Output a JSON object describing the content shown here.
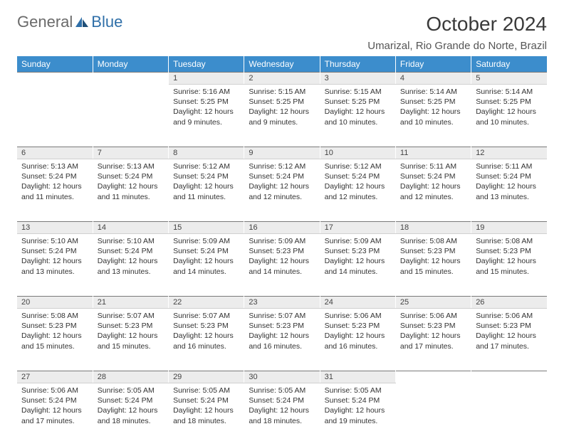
{
  "logo": {
    "general": "General",
    "blue": "Blue"
  },
  "title": "October 2024",
  "location": "Umarizal, Rio Grande do Norte, Brazil",
  "colors": {
    "header_bg": "#3c8dcc",
    "header_text": "#ffffff",
    "daynum_bg": "#ececec",
    "logo_gray": "#6a6a6a",
    "logo_blue": "#2f6fa8"
  },
  "weekdays": [
    "Sunday",
    "Monday",
    "Tuesday",
    "Wednesday",
    "Thursday",
    "Friday",
    "Saturday"
  ],
  "weeks": [
    [
      null,
      null,
      {
        "n": "1",
        "sunrise": "5:16 AM",
        "sunset": "5:25 PM",
        "daylight": "12 hours and 9 minutes."
      },
      {
        "n": "2",
        "sunrise": "5:15 AM",
        "sunset": "5:25 PM",
        "daylight": "12 hours and 9 minutes."
      },
      {
        "n": "3",
        "sunrise": "5:15 AM",
        "sunset": "5:25 PM",
        "daylight": "12 hours and 10 minutes."
      },
      {
        "n": "4",
        "sunrise": "5:14 AM",
        "sunset": "5:25 PM",
        "daylight": "12 hours and 10 minutes."
      },
      {
        "n": "5",
        "sunrise": "5:14 AM",
        "sunset": "5:25 PM",
        "daylight": "12 hours and 10 minutes."
      }
    ],
    [
      {
        "n": "6",
        "sunrise": "5:13 AM",
        "sunset": "5:24 PM",
        "daylight": "12 hours and 11 minutes."
      },
      {
        "n": "7",
        "sunrise": "5:13 AM",
        "sunset": "5:24 PM",
        "daylight": "12 hours and 11 minutes."
      },
      {
        "n": "8",
        "sunrise": "5:12 AM",
        "sunset": "5:24 PM",
        "daylight": "12 hours and 11 minutes."
      },
      {
        "n": "9",
        "sunrise": "5:12 AM",
        "sunset": "5:24 PM",
        "daylight": "12 hours and 12 minutes."
      },
      {
        "n": "10",
        "sunrise": "5:12 AM",
        "sunset": "5:24 PM",
        "daylight": "12 hours and 12 minutes."
      },
      {
        "n": "11",
        "sunrise": "5:11 AM",
        "sunset": "5:24 PM",
        "daylight": "12 hours and 12 minutes."
      },
      {
        "n": "12",
        "sunrise": "5:11 AM",
        "sunset": "5:24 PM",
        "daylight": "12 hours and 13 minutes."
      }
    ],
    [
      {
        "n": "13",
        "sunrise": "5:10 AM",
        "sunset": "5:24 PM",
        "daylight": "12 hours and 13 minutes."
      },
      {
        "n": "14",
        "sunrise": "5:10 AM",
        "sunset": "5:24 PM",
        "daylight": "12 hours and 13 minutes."
      },
      {
        "n": "15",
        "sunrise": "5:09 AM",
        "sunset": "5:24 PM",
        "daylight": "12 hours and 14 minutes."
      },
      {
        "n": "16",
        "sunrise": "5:09 AM",
        "sunset": "5:23 PM",
        "daylight": "12 hours and 14 minutes."
      },
      {
        "n": "17",
        "sunrise": "5:09 AM",
        "sunset": "5:23 PM",
        "daylight": "12 hours and 14 minutes."
      },
      {
        "n": "18",
        "sunrise": "5:08 AM",
        "sunset": "5:23 PM",
        "daylight": "12 hours and 15 minutes."
      },
      {
        "n": "19",
        "sunrise": "5:08 AM",
        "sunset": "5:23 PM",
        "daylight": "12 hours and 15 minutes."
      }
    ],
    [
      {
        "n": "20",
        "sunrise": "5:08 AM",
        "sunset": "5:23 PM",
        "daylight": "12 hours and 15 minutes."
      },
      {
        "n": "21",
        "sunrise": "5:07 AM",
        "sunset": "5:23 PM",
        "daylight": "12 hours and 15 minutes."
      },
      {
        "n": "22",
        "sunrise": "5:07 AM",
        "sunset": "5:23 PM",
        "daylight": "12 hours and 16 minutes."
      },
      {
        "n": "23",
        "sunrise": "5:07 AM",
        "sunset": "5:23 PM",
        "daylight": "12 hours and 16 minutes."
      },
      {
        "n": "24",
        "sunrise": "5:06 AM",
        "sunset": "5:23 PM",
        "daylight": "12 hours and 16 minutes."
      },
      {
        "n": "25",
        "sunrise": "5:06 AM",
        "sunset": "5:23 PM",
        "daylight": "12 hours and 17 minutes."
      },
      {
        "n": "26",
        "sunrise": "5:06 AM",
        "sunset": "5:23 PM",
        "daylight": "12 hours and 17 minutes."
      }
    ],
    [
      {
        "n": "27",
        "sunrise": "5:06 AM",
        "sunset": "5:24 PM",
        "daylight": "12 hours and 17 minutes."
      },
      {
        "n": "28",
        "sunrise": "5:05 AM",
        "sunset": "5:24 PM",
        "daylight": "12 hours and 18 minutes."
      },
      {
        "n": "29",
        "sunrise": "5:05 AM",
        "sunset": "5:24 PM",
        "daylight": "12 hours and 18 minutes."
      },
      {
        "n": "30",
        "sunrise": "5:05 AM",
        "sunset": "5:24 PM",
        "daylight": "12 hours and 18 minutes."
      },
      {
        "n": "31",
        "sunrise": "5:05 AM",
        "sunset": "5:24 PM",
        "daylight": "12 hours and 19 minutes."
      },
      null,
      null
    ]
  ]
}
